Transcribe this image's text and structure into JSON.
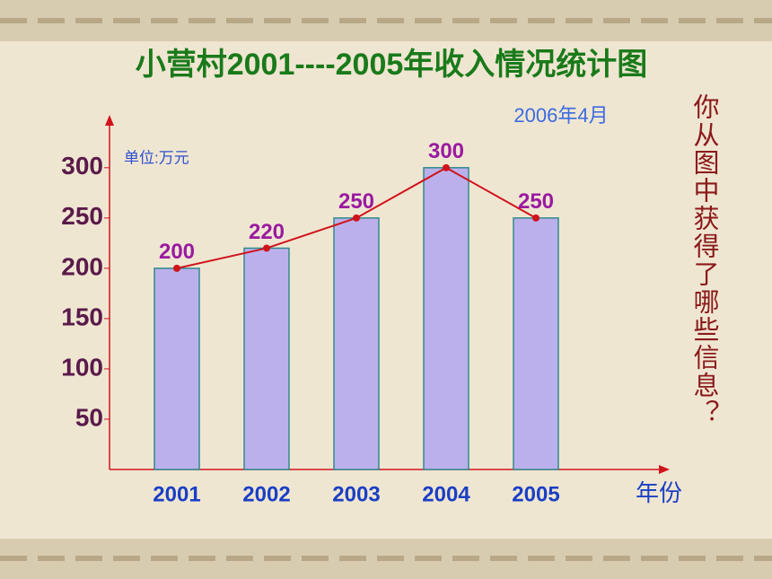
{
  "chart_data": {
    "type": "bar",
    "title": "小营村2001----2005年收入情况统计图",
    "subtitle": "2006年4月",
    "unit_label": "单位:万元",
    "x_label": "年份",
    "side_note": "你从图中获得了哪些信息？",
    "categories": [
      "2001",
      "2002",
      "2003",
      "2004",
      "2005"
    ],
    "values": [
      200,
      220,
      250,
      300,
      250
    ],
    "color": "#bcb0ec",
    "line": true,
    "line_color": "#d0141c",
    "ylim": [
      0,
      340
    ],
    "yticks": [
      50,
      100,
      150,
      200,
      250,
      300
    ],
    "grid": false
  }
}
